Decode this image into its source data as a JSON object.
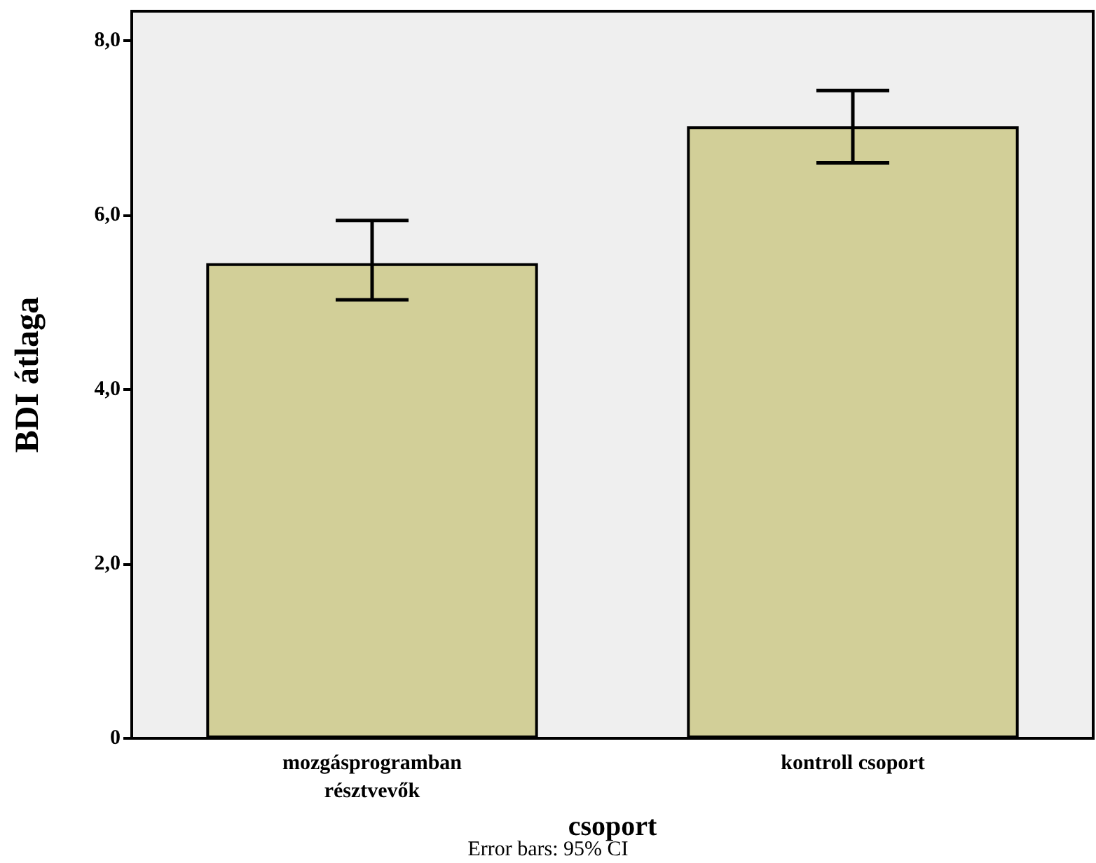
{
  "chart_data": {
    "type": "bar",
    "xlabel": "csoport",
    "ylabel": "BDI átlaga",
    "categories": [
      "mozgásprogramban\nrésztvevők",
      "kontroll csoport"
    ],
    "values": [
      5.45,
      7.02
    ],
    "errors": [
      [
        5.03,
        5.94
      ],
      [
        6.6,
        7.43
      ]
    ],
    "color": "#d2cf98",
    "ylim": [
      0,
      8.34
    ],
    "yticks": [
      {
        "value": 0,
        "label": "0"
      },
      {
        "value": 2,
        "label": "2,0"
      },
      {
        "value": 4,
        "label": "4,0"
      },
      {
        "value": 6,
        "label": "6,0"
      },
      {
        "value": 8,
        "label": "8,0"
      }
    ],
    "grid": false,
    "annotations": [
      "Error bars: 95% CI"
    ]
  }
}
